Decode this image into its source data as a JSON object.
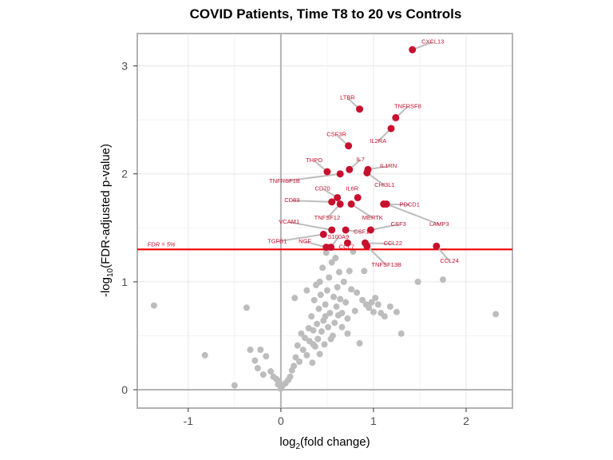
{
  "chart_data": {
    "type": "scatter",
    "title": "COVID Patients, Time T8 to 20 vs Controls",
    "xlabel_main": "log",
    "xlabel_sub": "2",
    "xlabel_rest": "(fold change)",
    "ylabel_pre": "-log",
    "ylabel_sub": "10",
    "ylabel_rest": "(FDR-adjusted p-value)",
    "xlim": [
      -1.55,
      2.5
    ],
    "ylim": [
      -0.17,
      3.3
    ],
    "xticks": [
      -1,
      0,
      1,
      2
    ],
    "xtick_labels": [
      "-1",
      "0",
      "1",
      "2"
    ],
    "yticks": [
      0,
      1,
      2,
      3
    ],
    "ytick_labels": [
      "0",
      "1",
      "2",
      "3"
    ],
    "grid": true,
    "fdr_threshold": 1.3,
    "fdr_label": "FDR = 5%",
    "colors": {
      "significant": "#c8102e",
      "nonsignificant": "#bdbdbd",
      "threshold_line": "#ee0000",
      "label_line": "#bdbdbd",
      "frame": "#b3b3b3",
      "grid": "#e6e6e6"
    },
    "significant_points": [
      {
        "gene": "CXCL13",
        "x": 1.42,
        "y": 3.15,
        "lx": 1.64,
        "ly": 3.23
      },
      {
        "gene": "LTBR",
        "x": 0.85,
        "y": 2.6,
        "lx": 0.72,
        "ly": 2.71
      },
      {
        "gene": "TNFRSF8",
        "x": 1.24,
        "y": 2.52,
        "lx": 1.37,
        "ly": 2.63
      },
      {
        "gene": "CSF3R",
        "x": 0.73,
        "y": 2.26,
        "lx": 0.6,
        "ly": 2.37
      },
      {
        "gene": "IL2RA",
        "x": 1.19,
        "y": 2.42,
        "lx": 1.05,
        "ly": 2.31
      },
      {
        "gene": "IL7",
        "x": 0.74,
        "y": 2.04,
        "lx": 0.86,
        "ly": 2.14
      },
      {
        "gene": "IL1RN",
        "x": 0.94,
        "y": 2.04,
        "lx": 1.16,
        "ly": 2.08
      },
      {
        "gene": "THPO",
        "x": 0.5,
        "y": 2.02,
        "lx": 0.36,
        "ly": 2.13
      },
      {
        "gene": "TNFRSF1B",
        "x": 0.64,
        "y": 2.0,
        "lx": 0.04,
        "ly": 1.94
      },
      {
        "gene": "CHI3L1",
        "x": 0.93,
        "y": 2.01,
        "lx": 1.12,
        "ly": 1.9
      },
      {
        "gene": "CD70",
        "x": 0.61,
        "y": 1.78,
        "lx": 0.45,
        "ly": 1.87
      },
      {
        "gene": "IL6R",
        "x": 0.83,
        "y": 1.78,
        "lx": 0.77,
        "ly": 1.87
      },
      {
        "gene": "CD83",
        "x": 0.55,
        "y": 1.74,
        "lx": 0.12,
        "ly": 1.76
      },
      {
        "gene": "PDCD1",
        "x": 1.11,
        "y": 1.72,
        "lx": 1.39,
        "ly": 1.72
      },
      {
        "gene": "TNFSF12",
        "x": 0.64,
        "y": 1.72,
        "lx": 0.5,
        "ly": 1.6
      },
      {
        "gene": "MERTK",
        "x": 0.76,
        "y": 1.72,
        "lx": 0.99,
        "ly": 1.6
      },
      {
        "gene": "CSF3",
        "x": 0.97,
        "y": 1.48,
        "lx": 1.27,
        "ly": 1.54
      },
      {
        "gene": "LAMP3",
        "x": 1.14,
        "y": 1.72,
        "lx": 1.71,
        "ly": 1.54
      },
      {
        "gene": "VCAM1",
        "x": 0.55,
        "y": 1.48,
        "lx": 0.09,
        "ly": 1.56
      },
      {
        "gene": "CSF1",
        "x": 0.7,
        "y": 1.48,
        "lx": 0.87,
        "ly": 1.47
      },
      {
        "gene": "TGFB1",
        "x": 0.46,
        "y": 1.44,
        "lx": -0.04,
        "ly": 1.38
      },
      {
        "gene": "NGF",
        "x": 0.49,
        "y": 1.32,
        "lx": 0.26,
        "ly": 1.38
      },
      {
        "gene": "S100A9",
        "x": 0.54,
        "y": 1.32,
        "lx": 0.62,
        "ly": 1.42
      },
      {
        "gene": "CCL22",
        "x": 0.91,
        "y": 1.36,
        "lx": 1.21,
        "ly": 1.36
      },
      {
        "gene": "CCL7",
        "x": 0.72,
        "y": 1.36,
        "lx": 0.71,
        "ly": 1.33
      },
      {
        "gene": "CCL24",
        "x": 1.68,
        "y": 1.33,
        "lx": 1.82,
        "ly": 1.2
      },
      {
        "gene": "TNFSF13B",
        "x": 0.93,
        "y": 1.33,
        "lx": 1.14,
        "ly": 1.16
      }
    ],
    "nonsignificant_points": [
      [
        -1.37,
        0.78
      ],
      [
        -0.82,
        0.32
      ],
      [
        -0.5,
        0.04
      ],
      [
        -0.37,
        0.76
      ],
      [
        -0.33,
        0.37
      ],
      [
        -0.28,
        0.27
      ],
      [
        -0.25,
        0.2
      ],
      [
        -0.22,
        0.37
      ],
      [
        -0.19,
        0.14
      ],
      [
        -0.16,
        0.31
      ],
      [
        -0.11,
        0.17
      ],
      [
        -0.08,
        0.12
      ],
      [
        -0.05,
        0.1
      ],
      [
        -0.03,
        0.05
      ],
      [
        -0.02,
        0.08
      ],
      [
        0.0,
        0.01
      ],
      [
        0.02,
        0.04
      ],
      [
        0.05,
        0.06
      ],
      [
        0.08,
        0.09
      ],
      [
        0.1,
        0.12
      ],
      [
        0.12,
        0.18
      ],
      [
        0.14,
        0.22
      ],
      [
        0.16,
        0.3
      ],
      [
        0.18,
        0.41
      ],
      [
        0.2,
        0.26
      ],
      [
        0.22,
        0.52
      ],
      [
        0.24,
        0.37
      ],
      [
        0.26,
        0.48
      ],
      [
        0.28,
        0.32
      ],
      [
        0.3,
        0.57
      ],
      [
        0.31,
        0.45
      ],
      [
        0.33,
        0.68
      ],
      [
        0.34,
        0.25
      ],
      [
        0.35,
        0.55
      ],
      [
        0.36,
        0.83
      ],
      [
        0.37,
        0.4
      ],
      [
        0.38,
        0.97
      ],
      [
        0.39,
        0.61
      ],
      [
        0.4,
        0.47
      ],
      [
        0.41,
        0.75
      ],
      [
        0.42,
        0.33
      ],
      [
        0.43,
        0.88
      ],
      [
        0.44,
        0.54
      ],
      [
        0.45,
        1.13
      ],
      [
        0.46,
        0.64
      ],
      [
        0.47,
        0.42
      ],
      [
        0.48,
        0.79
      ],
      [
        0.49,
        1.27
      ],
      [
        0.5,
        0.92
      ],
      [
        0.51,
        0.58
      ],
      [
        0.52,
        1.04
      ],
      [
        0.53,
        0.71
      ],
      [
        0.55,
        1.18
      ],
      [
        0.56,
        0.5
      ],
      [
        0.57,
        0.86
      ],
      [
        0.58,
        0.62
      ],
      [
        0.59,
        1.22
      ],
      [
        0.6,
        0.77
      ],
      [
        0.61,
        0.95
      ],
      [
        0.62,
        0.69
      ],
      [
        0.63,
        1.09
      ],
      [
        0.64,
        0.84
      ],
      [
        0.66,
        0.71
      ],
      [
        0.68,
        1.0
      ],
      [
        0.7,
        0.81
      ],
      [
        0.72,
        0.66
      ],
      [
        0.74,
        1.1
      ],
      [
        0.76,
        0.93
      ],
      [
        0.78,
        1.28
      ],
      [
        0.8,
        0.73
      ],
      [
        0.82,
        0.9
      ],
      [
        0.85,
        0.43
      ],
      [
        0.88,
        0.83
      ],
      [
        0.9,
        1.1
      ],
      [
        0.92,
        0.79
      ],
      [
        0.95,
        0.76
      ],
      [
        0.98,
        0.81
      ],
      [
        1.0,
        0.72
      ],
      [
        1.02,
        0.85
      ],
      [
        1.05,
        0.79
      ],
      [
        1.08,
        0.71
      ],
      [
        1.12,
        0.68
      ],
      [
        1.18,
        0.77
      ],
      [
        1.25,
        0.72
      ],
      [
        1.3,
        0.52
      ],
      [
        1.48,
        1.0
      ],
      [
        1.75,
        1.02
      ],
      [
        2.32,
        0.7
      ],
      [
        0.15,
        0.85
      ],
      [
        0.28,
        0.92
      ],
      [
        0.35,
        0.42
      ],
      [
        0.42,
        1.0
      ],
      [
        0.48,
        0.68
      ],
      [
        0.54,
        0.47
      ],
      [
        0.66,
        0.58
      ],
      [
        0.72,
        0.52
      ]
    ]
  }
}
